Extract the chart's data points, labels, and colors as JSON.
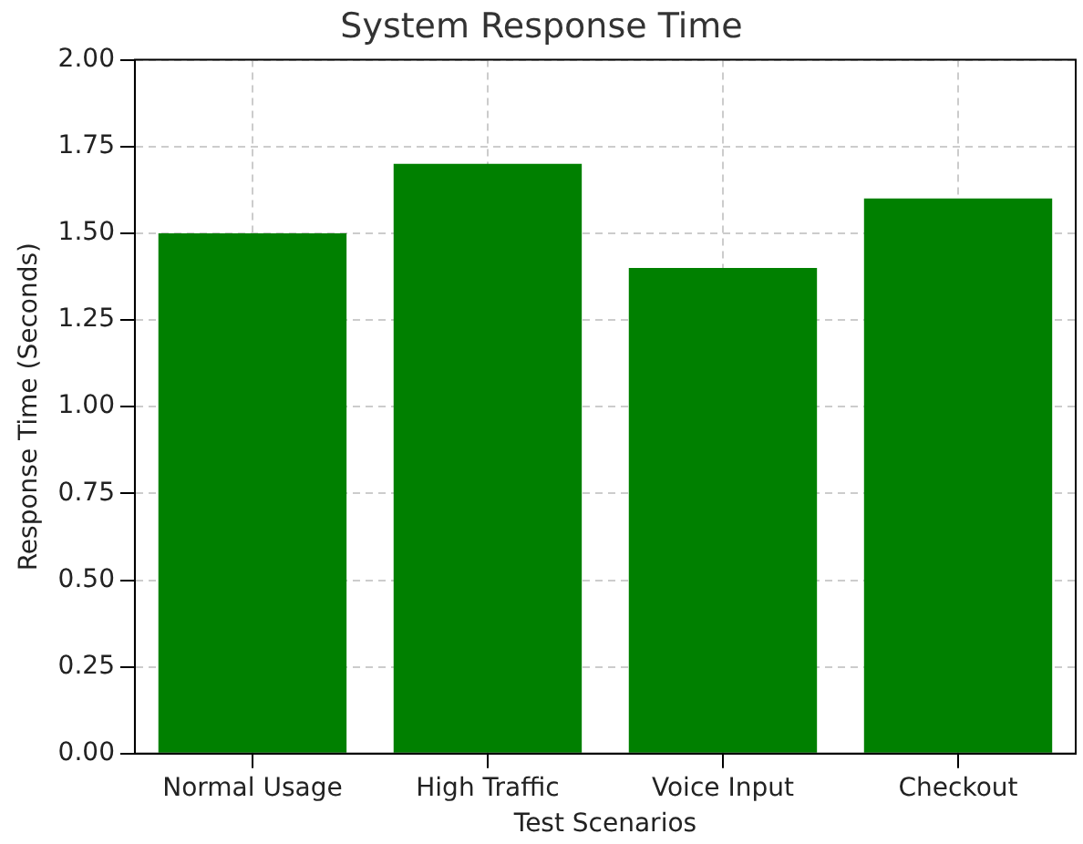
{
  "chart_data": {
    "type": "bar",
    "title": "System Response Time",
    "xlabel": "Test Scenarios",
    "ylabel": "Response Time (Seconds)",
    "categories": [
      "Normal Usage",
      "High Traffic",
      "Voice Input",
      "Checkout"
    ],
    "values": [
      1.5,
      1.7,
      1.4,
      1.6
    ],
    "color": "#008000",
    "ylim": [
      0,
      2
    ],
    "yticks": [
      {
        "value": 0,
        "label": "0.00"
      },
      {
        "value": 0.25,
        "label": "0.25"
      },
      {
        "value": 0.5,
        "label": "0.50"
      },
      {
        "value": 0.75,
        "label": "0.75"
      },
      {
        "value": 1,
        "label": "1.00"
      },
      {
        "value": 1.25,
        "label": "1.25"
      },
      {
        "value": 1.5,
        "label": "1.50"
      },
      {
        "value": 1.75,
        "label": "1.75"
      },
      {
        "value": 2,
        "label": "2.00"
      }
    ],
    "grid": true
  }
}
